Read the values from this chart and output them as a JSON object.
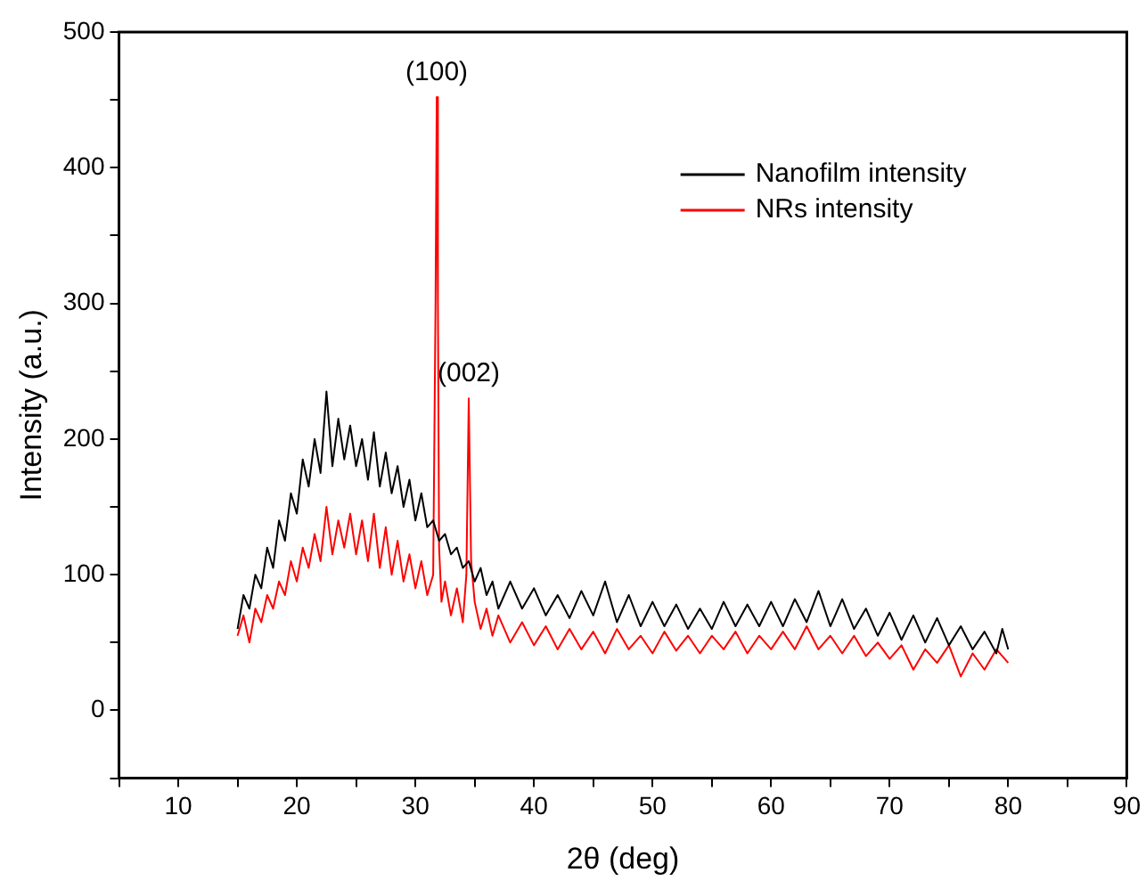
{
  "chart_data": {
    "type": "line",
    "xlabel": "2θ (deg)",
    "ylabel": "Intensity (a.u.)",
    "xlim": [
      5,
      90
    ],
    "xticks": [
      {
        "value": 5,
        "label": null
      },
      10,
      {
        "value": 15,
        "label": null
      },
      20,
      {
        "value": 25,
        "label": null
      },
      30,
      {
        "value": 35,
        "label": null
      },
      40,
      {
        "value": 45,
        "label": null
      },
      50,
      {
        "value": 55,
        "label": null
      },
      60,
      {
        "value": 65,
        "label": null
      },
      70,
      {
        "value": 75,
        "label": null
      },
      80,
      {
        "value": 85,
        "label": null
      },
      90
    ],
    "ylim": [
      -50,
      500
    ],
    "yticks": [
      {
        "value": -50,
        "label": null
      },
      0,
      {
        "value": 50,
        "label": null
      },
      100,
      {
        "value": 150,
        "label": null
      },
      200,
      {
        "value": 250,
        "label": null
      },
      300,
      {
        "value": 350,
        "label": null
      },
      400,
      {
        "value": 450,
        "label": null
      },
      500
    ],
    "grid": false,
    "legend": "top right",
    "marker": "none",
    "line_style": "solid",
    "annotations": [
      {
        "text": "(100)",
        "x": 31.8,
        "y": 452
      },
      {
        "text": "(002)",
        "x": 34.5,
        "y": 230
      }
    ],
    "series": [
      {
        "name": "Nanofilm intensity",
        "color": "#000000",
        "x": [
          15,
          15.5,
          16,
          16.5,
          17,
          17.5,
          18,
          18.5,
          19,
          19.5,
          20,
          20.5,
          21,
          21.5,
          22,
          22.5,
          23,
          23.5,
          24,
          24.5,
          25,
          25.5,
          26,
          26.5,
          27,
          27.5,
          28,
          28.5,
          29,
          29.5,
          30,
          30.5,
          31,
          31.5,
          32,
          32.5,
          33,
          33.5,
          34,
          34.5,
          35,
          35.5,
          36,
          36.5,
          37,
          38,
          39,
          40,
          41,
          42,
          43,
          44,
          45,
          46,
          47,
          48,
          49,
          50,
          51,
          52,
          53,
          54,
          55,
          56,
          57,
          58,
          59,
          60,
          61,
          62,
          63,
          64,
          65,
          66,
          67,
          68,
          69,
          70,
          71,
          72,
          73,
          74,
          75,
          76,
          77,
          78,
          79,
          79.5,
          80
        ],
        "values": [
          60,
          85,
          75,
          100,
          90,
          120,
          105,
          140,
          125,
          160,
          145,
          185,
          165,
          200,
          175,
          235,
          180,
          215,
          185,
          210,
          180,
          200,
          170,
          205,
          165,
          190,
          160,
          180,
          150,
          170,
          140,
          160,
          135,
          140,
          125,
          130,
          115,
          120,
          105,
          110,
          95,
          105,
          85,
          95,
          75,
          95,
          75,
          90,
          70,
          85,
          68,
          88,
          70,
          95,
          65,
          85,
          62,
          80,
          62,
          78,
          60,
          75,
          60,
          80,
          62,
          78,
          62,
          80,
          62,
          82,
          65,
          88,
          62,
          82,
          60,
          75,
          55,
          72,
          52,
          70,
          50,
          68,
          48,
          62,
          45,
          58,
          42,
          60,
          45
        ]
      },
      {
        "name": "NRs intensity",
        "color": "#ff0000",
        "x": [
          15,
          15.5,
          16,
          16.5,
          17,
          17.5,
          18,
          18.5,
          19,
          19.5,
          20,
          20.5,
          21,
          21.5,
          22,
          22.5,
          23,
          23.5,
          24,
          24.5,
          25,
          25.5,
          26,
          26.5,
          27,
          27.5,
          28,
          28.5,
          29,
          29.5,
          30,
          30.5,
          31,
          31.5,
          31.7,
          31.8,
          31.9,
          32,
          32.2,
          32.5,
          33,
          33.5,
          34,
          34.3,
          34.5,
          34.7,
          35,
          35.5,
          36,
          36.5,
          37,
          38,
          39,
          40,
          41,
          42,
          43,
          44,
          45,
          46,
          47,
          48,
          49,
          50,
          51,
          52,
          53,
          54,
          55,
          56,
          57,
          58,
          59,
          60,
          61,
          62,
          63,
          64,
          65,
          66,
          67,
          68,
          69,
          70,
          71,
          72,
          73,
          74,
          75,
          76,
          77,
          78,
          79,
          80
        ],
        "values": [
          55,
          70,
          50,
          75,
          65,
          85,
          75,
          95,
          85,
          110,
          95,
          120,
          105,
          130,
          110,
          150,
          115,
          140,
          120,
          145,
          115,
          140,
          110,
          145,
          105,
          135,
          100,
          125,
          95,
          115,
          90,
          110,
          85,
          100,
          300,
          452,
          300,
          120,
          80,
          95,
          70,
          90,
          65,
          100,
          230,
          110,
          80,
          60,
          75,
          55,
          70,
          50,
          65,
          48,
          62,
          45,
          60,
          45,
          58,
          42,
          60,
          45,
          55,
          42,
          58,
          44,
          55,
          42,
          55,
          45,
          58,
          42,
          55,
          45,
          58,
          45,
          62,
          45,
          55,
          42,
          55,
          40,
          50,
          38,
          48,
          30,
          45,
          35,
          48,
          25,
          42,
          30,
          45,
          35
        ]
      }
    ]
  }
}
